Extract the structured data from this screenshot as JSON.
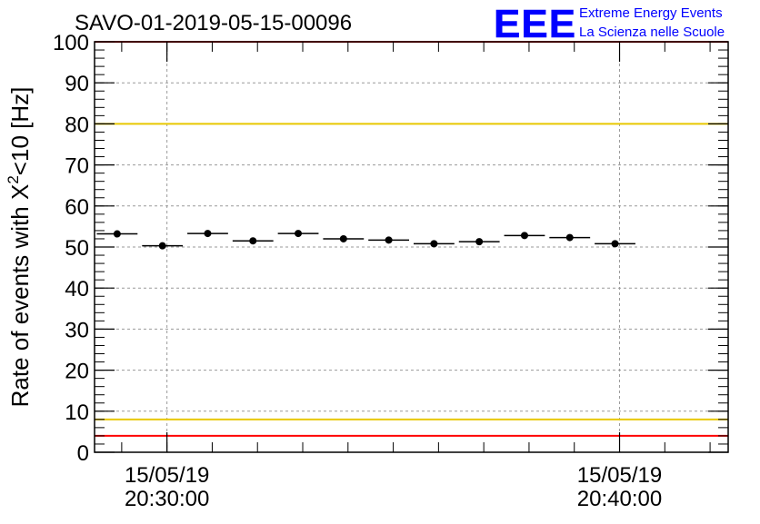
{
  "chart_data": {
    "type": "scatter",
    "title": "SAVO-01-2019-05-15-00096",
    "ylabel_main": "Rate of events with X",
    "ylabel_sup": "2",
    "ylabel_tail": "<10 [Hz]",
    "ylim": [
      0,
      100
    ],
    "yticks": [
      0,
      10,
      20,
      30,
      40,
      50,
      60,
      70,
      80,
      90,
      100
    ],
    "xlim": [
      0,
      14
    ],
    "xtick_labels": [
      {
        "x": 1.6,
        "date": "15/05/19",
        "time": "20:30:00"
      },
      {
        "x": 11.6,
        "date": "15/05/19",
        "time": "20:40:00"
      }
    ],
    "bin_width": 0.9,
    "points": [
      {
        "x": 0.5,
        "y": 53.2
      },
      {
        "x": 1.5,
        "y": 50.3
      },
      {
        "x": 2.5,
        "y": 53.3
      },
      {
        "x": 3.5,
        "y": 51.5
      },
      {
        "x": 4.5,
        "y": 53.3
      },
      {
        "x": 5.5,
        "y": 52.0
      },
      {
        "x": 6.5,
        "y": 51.7
      },
      {
        "x": 7.5,
        "y": 50.8
      },
      {
        "x": 8.5,
        "y": 51.3
      },
      {
        "x": 9.5,
        "y": 52.8
      },
      {
        "x": 10.5,
        "y": 52.3
      },
      {
        "x": 11.5,
        "y": 50.8
      }
    ],
    "reference_lines": [
      {
        "y": 100,
        "color": "#ff0000"
      },
      {
        "y": 80,
        "color": "#e8c800"
      },
      {
        "y": 8,
        "color": "#e8c800"
      },
      {
        "y": 4,
        "color": "#ff0000"
      }
    ],
    "grid": true
  },
  "logo": {
    "text": "EEE",
    "line1": "Extreme Energy Events",
    "line2": "La Scienza nelle Scuole",
    "color": "#0000ff"
  }
}
